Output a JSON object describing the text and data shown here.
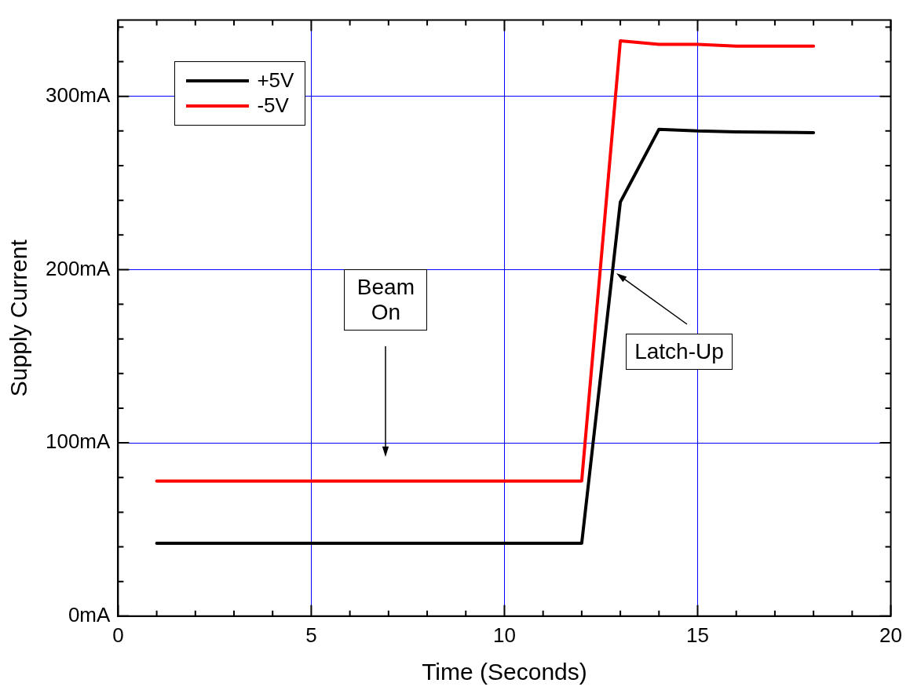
{
  "chart_data": {
    "type": "line",
    "xlabel": "Time (Seconds)",
    "ylabel": "Supply Current",
    "xlim": [
      0,
      20
    ],
    "ylim": [
      0,
      344
    ],
    "xticks": [
      0,
      {
        "value": 1,
        "label": null
      },
      {
        "value": 2,
        "label": null
      },
      {
        "value": 3,
        "label": null
      },
      {
        "value": 4,
        "label": null
      },
      5,
      {
        "value": 6,
        "label": null
      },
      {
        "value": 7,
        "label": null
      },
      {
        "value": 8,
        "label": null
      },
      {
        "value": 9,
        "label": null
      },
      10,
      {
        "value": 11,
        "label": null
      },
      {
        "value": 12,
        "label": null
      },
      {
        "value": 13,
        "label": null
      },
      {
        "value": 14,
        "label": null
      },
      15,
      {
        "value": 16,
        "label": null
      },
      {
        "value": 17,
        "label": null
      },
      {
        "value": 18,
        "label": null
      },
      {
        "value": 19,
        "label": null
      },
      20
    ],
    "yticks": [
      {
        "value": 0,
        "label": "0mA"
      },
      {
        "value": 20,
        "label": null
      },
      {
        "value": 40,
        "label": null
      },
      {
        "value": 60,
        "label": null
      },
      {
        "value": 80,
        "label": null
      },
      {
        "value": 100,
        "label": "100mA"
      },
      {
        "value": 120,
        "label": null
      },
      {
        "value": 140,
        "label": null
      },
      {
        "value": 160,
        "label": null
      },
      {
        "value": 180,
        "label": null
      },
      {
        "value": 200,
        "label": "200mA"
      },
      {
        "value": 220,
        "label": null
      },
      {
        "value": 240,
        "label": null
      },
      {
        "value": 260,
        "label": null
      },
      {
        "value": 280,
        "label": null
      },
      {
        "value": 300,
        "label": "300mA"
      },
      {
        "value": 320,
        "label": null
      },
      {
        "value": 340,
        "label": null
      }
    ],
    "grid": true,
    "legend": "top left",
    "marker": "none",
    "line_style": "solid",
    "series": [
      {
        "name": "+5V",
        "color": "#000000",
        "x": [
          1,
          12,
          13,
          14,
          15,
          16,
          18
        ],
        "values": [
          42,
          42,
          239,
          281,
          280,
          279.5,
          279
        ]
      },
      {
        "name": "-5V",
        "color": "#ff0000",
        "x": [
          1,
          12,
          13,
          14,
          15,
          16,
          18
        ],
        "values": [
          78,
          78,
          332,
          330,
          330,
          329,
          329
        ]
      }
    ],
    "annotations": [
      "Beam On",
      "Latch-Up"
    ]
  }
}
